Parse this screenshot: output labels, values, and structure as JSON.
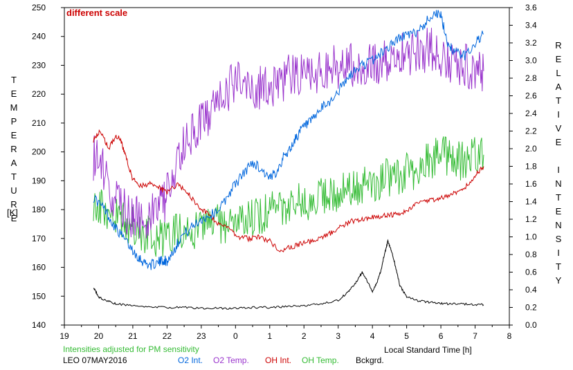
{
  "chart_data": {
    "type": "line",
    "annotation": "different scale",
    "left_axis_title": "TEMPERATURE",
    "left_axis_unit": "[K]",
    "right_axis_title": "RELATIVE INTENSITY",
    "xlabel": "Local Standard Time [h]",
    "note": "Intensities adjusted for PM sensitivity",
    "station_date": "LEO 07MAY2016",
    "xlim": [
      19,
      8
    ],
    "xticks": [
      "19",
      "20",
      "21",
      "22",
      "23",
      "0",
      "1",
      "2",
      "3",
      "4",
      "5",
      "6",
      "7",
      "8"
    ],
    "ylim_left": [
      140,
      250
    ],
    "yticks_left": [
      "140",
      "150",
      "160",
      "170",
      "180",
      "190",
      "200",
      "210",
      "220",
      "230",
      "240",
      "250"
    ],
    "ylim_right": [
      0.0,
      3.6
    ],
    "yticks_right": [
      "0.0",
      "0.2",
      "0.4",
      "0.6",
      "0.8",
      "1.0",
      "1.2",
      "1.4",
      "1.6",
      "1.8",
      "2.0",
      "2.2",
      "2.4",
      "2.6",
      "2.8",
      "3.0",
      "3.2",
      "3.4",
      "3.6"
    ],
    "grid": false,
    "legend_position": "bottom",
    "series": [
      {
        "name": "O2 Int.",
        "color": "#0066dd",
        "axis": "right",
        "noise": 0.06,
        "x": [
          19.85,
          20.2,
          20.5,
          20.8,
          21.1,
          21.3,
          21.5,
          21.7,
          21.9,
          22.0,
          22.2,
          22.4,
          22.7,
          23.0,
          23.3,
          23.6,
          23.9,
          0.2,
          0.5,
          0.8,
          1.0,
          1.2,
          1.4,
          1.6,
          1.8,
          2.0,
          2.2,
          2.5,
          2.8,
          3.1,
          3.4,
          3.7,
          4.0,
          4.3,
          4.6,
          4.9,
          5.2,
          5.5,
          5.8,
          6.0,
          6.2,
          6.4,
          6.7,
          7.0,
          7.25
        ],
        "y": [
          1.45,
          1.3,
          1.1,
          0.95,
          0.8,
          0.72,
          0.68,
          0.7,
          0.74,
          0.72,
          0.85,
          1.0,
          1.1,
          1.2,
          1.25,
          1.35,
          1.55,
          1.7,
          1.85,
          1.75,
          1.65,
          1.75,
          1.9,
          2.0,
          2.15,
          2.25,
          2.3,
          2.45,
          2.55,
          2.7,
          2.85,
          2.95,
          3.0,
          3.1,
          3.2,
          3.28,
          3.3,
          3.4,
          3.55,
          3.5,
          3.2,
          3.1,
          3.05,
          3.2,
          3.3
        ]
      },
      {
        "name": "O2 Temp.",
        "color": "#9933cc",
        "axis": "left",
        "noise": 8,
        "x": [
          19.85,
          20.1,
          20.4,
          20.7,
          21.0,
          21.2,
          21.5,
          21.8,
          22.0,
          22.3,
          22.6,
          22.9,
          23.2,
          23.5,
          23.8,
          0.1,
          0.4,
          0.7,
          1.0,
          1.3,
          1.6,
          1.9,
          2.2,
          2.5,
          2.8,
          3.1,
          3.4,
          3.7,
          4.0,
          4.3,
          4.6,
          4.9,
          5.2,
          5.5,
          5.8,
          6.1,
          6.4,
          6.7,
          7.0,
          7.25
        ],
        "y": [
          198,
          195,
          185,
          180,
          178,
          176,
          178,
          180,
          185,
          195,
          205,
          208,
          212,
          218,
          222,
          225,
          224,
          222,
          223,
          225,
          226,
          227,
          228,
          228,
          229,
          230,
          230,
          231,
          230,
          231,
          233,
          234,
          234,
          235,
          236,
          232,
          231,
          230,
          229,
          228
        ]
      },
      {
        "name": "OH Int.",
        "color": "#cc0000",
        "axis": "right",
        "noise": 0.03,
        "x": [
          19.85,
          20.05,
          20.3,
          20.5,
          20.65,
          20.8,
          21.0,
          21.2,
          21.5,
          21.8,
          22.0,
          22.3,
          22.6,
          22.9,
          23.2,
          23.5,
          23.8,
          0.1,
          0.4,
          0.7,
          1.0,
          1.3,
          1.6,
          1.9,
          2.2,
          2.5,
          2.8,
          3.1,
          3.4,
          3.7,
          4.0,
          4.3,
          4.6,
          4.9,
          5.2,
          5.5,
          5.8,
          6.1,
          6.4,
          6.7,
          7.0,
          7.25
        ],
        "y": [
          2.1,
          2.2,
          2.0,
          2.15,
          2.1,
          1.9,
          1.65,
          1.58,
          1.6,
          1.55,
          1.5,
          1.6,
          1.5,
          1.35,
          1.25,
          1.15,
          1.1,
          1.0,
          0.98,
          1.0,
          0.95,
          0.85,
          0.88,
          0.92,
          0.95,
          0.98,
          1.05,
          1.12,
          1.18,
          1.2,
          1.22,
          1.24,
          1.25,
          1.28,
          1.35,
          1.4,
          1.42,
          1.45,
          1.5,
          1.55,
          1.7,
          1.8
        ]
      },
      {
        "name": "OH Temp.",
        "color": "#33bb33",
        "axis": "left",
        "noise": 7,
        "x": [
          19.85,
          20.1,
          20.4,
          20.7,
          21.0,
          21.3,
          21.6,
          21.9,
          22.2,
          22.5,
          22.8,
          23.1,
          23.4,
          23.7,
          0.0,
          0.3,
          0.6,
          0.9,
          1.2,
          1.5,
          1.8,
          2.1,
          2.4,
          2.7,
          3.0,
          3.3,
          3.6,
          3.9,
          4.2,
          4.5,
          4.8,
          5.1,
          5.4,
          5.7,
          6.0,
          6.3,
          6.6,
          6.9,
          7.25
        ],
        "y": [
          183,
          180,
          178,
          176,
          174,
          172,
          170,
          170,
          172,
          173,
          173,
          174,
          175,
          175,
          174,
          176,
          178,
          179,
          180,
          181,
          182,
          183,
          184,
          185,
          186,
          187,
          188,
          189,
          190,
          191,
          192,
          193,
          195,
          197,
          199,
          198,
          197,
          198,
          199
        ]
      },
      {
        "name": "Bckgrd.",
        "color": "#000000",
        "axis": "right",
        "noise": 0.012,
        "x": [
          19.85,
          20.0,
          20.2,
          20.5,
          21.0,
          21.5,
          22.0,
          22.5,
          23.0,
          23.5,
          0.0,
          0.5,
          1.0,
          1.5,
          2.0,
          2.5,
          3.0,
          3.3,
          3.55,
          3.7,
          3.85,
          4.0,
          4.15,
          4.25,
          4.35,
          4.45,
          4.55,
          4.65,
          4.8,
          5.0,
          5.3,
          5.6,
          5.9,
          6.2,
          6.6,
          7.0,
          7.25
        ],
        "y": [
          0.43,
          0.32,
          0.28,
          0.24,
          0.22,
          0.21,
          0.2,
          0.2,
          0.19,
          0.19,
          0.19,
          0.2,
          0.2,
          0.21,
          0.22,
          0.24,
          0.28,
          0.38,
          0.5,
          0.6,
          0.5,
          0.38,
          0.5,
          0.62,
          0.8,
          0.95,
          0.85,
          0.7,
          0.45,
          0.32,
          0.28,
          0.26,
          0.25,
          0.24,
          0.24,
          0.23,
          0.23
        ]
      }
    ]
  }
}
